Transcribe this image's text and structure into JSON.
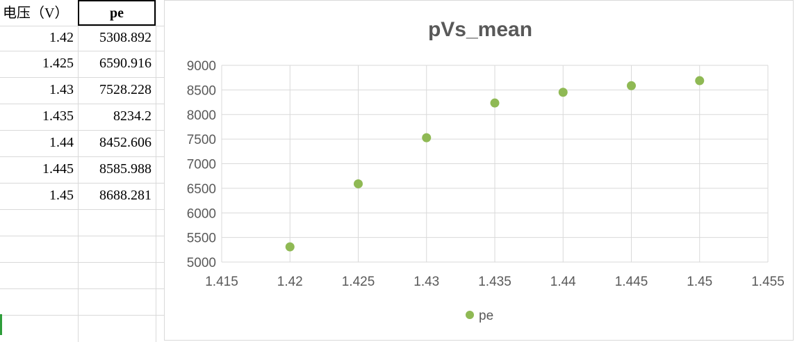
{
  "sheet": {
    "header_voltage": "电压（V）",
    "header_pe": "pe",
    "rows": [
      {
        "v": "1.42",
        "pe": "5308.892"
      },
      {
        "v": "1.425",
        "pe": "6590.916"
      },
      {
        "v": "1.43",
        "pe": "7528.228"
      },
      {
        "v": "1.435",
        "pe": "8234.2"
      },
      {
        "v": "1.44",
        "pe": "8452.606"
      },
      {
        "v": "1.445",
        "pe": "8585.988"
      },
      {
        "v": "1.45",
        "pe": "8688.281"
      }
    ]
  },
  "chart_data": {
    "type": "scatter",
    "title": "pVs_mean",
    "xlabel": "",
    "ylabel": "",
    "xlim": [
      1.415,
      1.455
    ],
    "ylim": [
      5000,
      9000
    ],
    "x_ticks": [
      "1.415",
      "1.42",
      "1.425",
      "1.43",
      "1.435",
      "1.44",
      "1.445",
      "1.45",
      "1.455"
    ],
    "y_ticks": [
      "5000",
      "5500",
      "6000",
      "6500",
      "7000",
      "7500",
      "8000",
      "8500",
      "9000"
    ],
    "grid": true,
    "legend_position": "bottom",
    "series": [
      {
        "name": "pe",
        "color": "#8fb954",
        "x": [
          1.42,
          1.425,
          1.43,
          1.435,
          1.44,
          1.445,
          1.45
        ],
        "y": [
          5308.892,
          6590.916,
          7528.228,
          8234.2,
          8452.606,
          8585.988,
          8688.281
        ]
      }
    ]
  }
}
